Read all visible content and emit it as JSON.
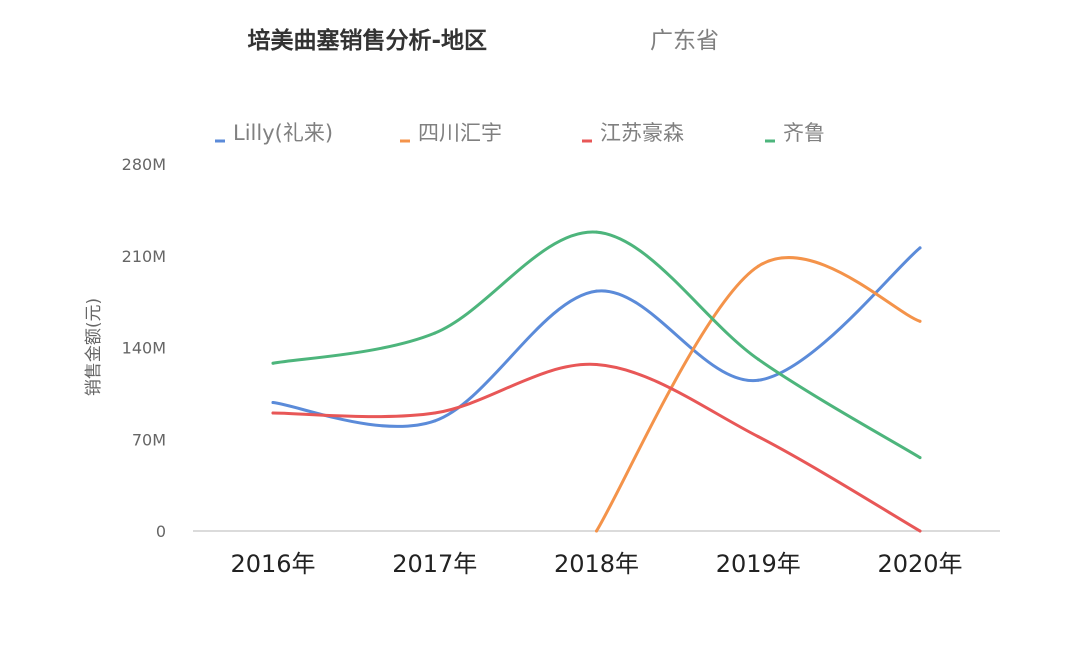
{
  "chart_data": {
    "type": "line",
    "title": "培美曲塞销售分析-地区",
    "subtitle": "广东省",
    "ylabel": "销售金额(元)",
    "xlabel": "",
    "categories": [
      "2016年",
      "2017年",
      "2018年",
      "2019年",
      "2020年"
    ],
    "yticks": [
      "0",
      "70M",
      "140M",
      "210M",
      "280M"
    ],
    "ylim": [
      0,
      280
    ],
    "y_unit": "M",
    "legend_position": "top",
    "grid": false,
    "smooth": true,
    "series": [
      {
        "name": "Lilly(礼来)",
        "color": "#5B8BD9",
        "values": [
          98,
          84,
          183,
          115,
          216
        ]
      },
      {
        "name": "四川汇宇",
        "color": "#F4934A",
        "values": [
          null,
          null,
          0,
          202,
          160
        ]
      },
      {
        "name": "江苏豪森",
        "color": "#E85757",
        "values": [
          90,
          90,
          127,
          72,
          0
        ]
      },
      {
        "name": "齐鲁",
        "color": "#4DB57C",
        "values": [
          128,
          151,
          228,
          131,
          56
        ]
      }
    ]
  }
}
